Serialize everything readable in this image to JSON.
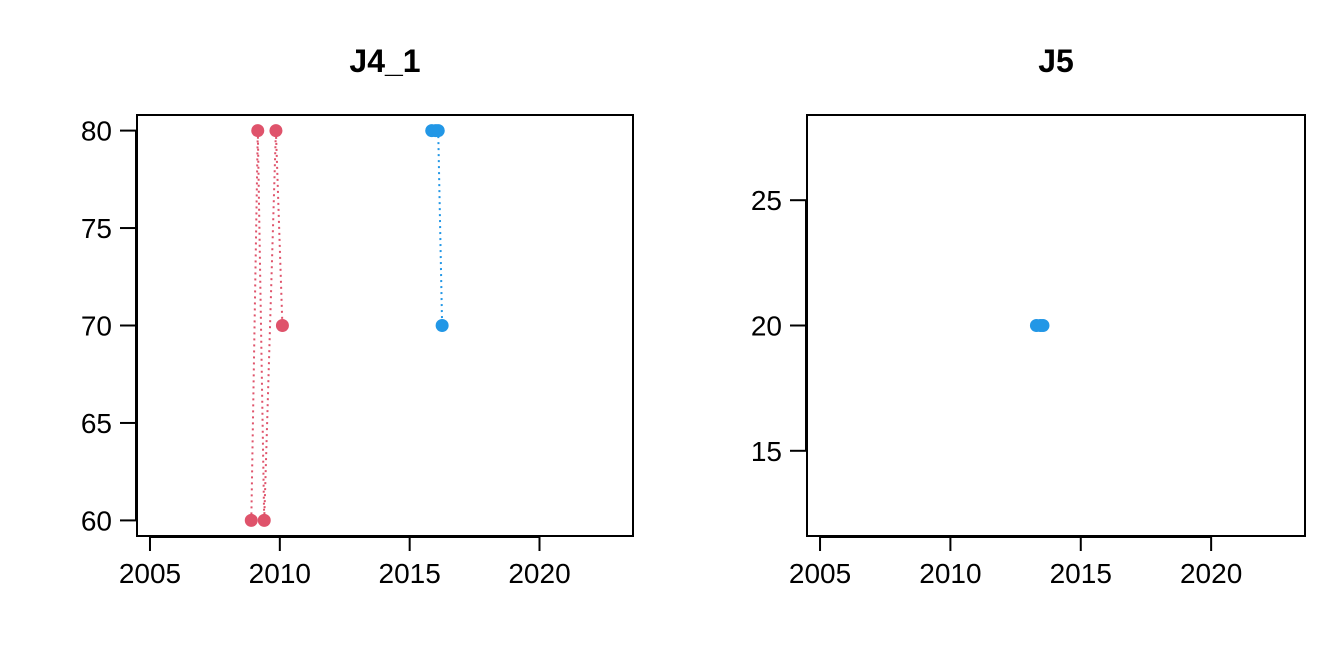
{
  "chart_data": [
    {
      "type": "line",
      "title": "J4_1",
      "xlabel": "",
      "ylabel": "",
      "xlim": [
        2004.5,
        2023.6
      ],
      "ylim": [
        59.2,
        80.8
      ],
      "xticks": [
        2005,
        2010,
        2015,
        2020
      ],
      "yticks": [
        60,
        65,
        70,
        75,
        80
      ],
      "grid": false,
      "series": [
        {
          "name": "red",
          "color": "#DF536B",
          "points": [
            {
              "x": 2008.9,
              "y": 60
            },
            {
              "x": 2009.15,
              "y": 80
            },
            {
              "x": 2009.4,
              "y": 60
            },
            {
              "x": 2009.85,
              "y": 80
            },
            {
              "x": 2010.1,
              "y": 70
            }
          ]
        },
        {
          "name": "blue",
          "color": "#2297E6",
          "points": [
            {
              "x": 2015.85,
              "y": 80
            },
            {
              "x": 2016.0,
              "y": 80
            },
            {
              "x": 2016.1,
              "y": 80
            },
            {
              "x": 2016.25,
              "y": 70
            }
          ]
        }
      ]
    },
    {
      "type": "line",
      "title": "J5",
      "xlabel": "",
      "ylabel": "",
      "xlim": [
        2004.5,
        2023.6
      ],
      "ylim": [
        11.6,
        28.4
      ],
      "xticks": [
        2005,
        2010,
        2015,
        2020
      ],
      "yticks": [
        15,
        20,
        25
      ],
      "grid": false,
      "series": [
        {
          "name": "blue",
          "color": "#2297E6",
          "points": [
            {
              "x": 2013.3,
              "y": 20
            },
            {
              "x": 2013.45,
              "y": 20
            },
            {
              "x": 2013.55,
              "y": 20
            }
          ]
        }
      ]
    }
  ]
}
